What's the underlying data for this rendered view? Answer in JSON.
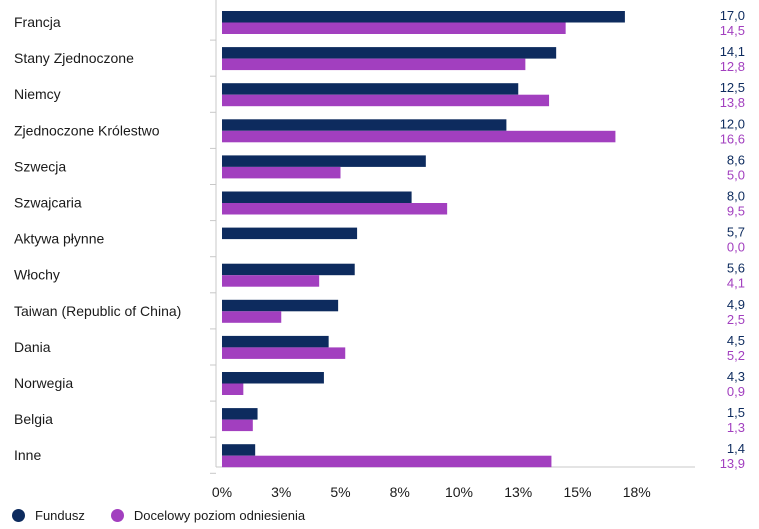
{
  "chart_data": {
    "type": "bar",
    "orientation": "horizontal",
    "categories": [
      "Francja",
      "Stany Zjednoczone",
      "Niemcy",
      "Zjednoczone Królestwo",
      "Szwecja",
      "Szwajcaria",
      "Aktywa płynne",
      "Włochy",
      "Taiwan (Republic of China)",
      "Dania",
      "Norwegia",
      "Belgia",
      "Inne"
    ],
    "series": [
      {
        "name": "Fundusz",
        "color": "#0d2b5e",
        "values": [
          17.0,
          14.1,
          12.5,
          12.0,
          8.6,
          8.0,
          5.7,
          5.6,
          4.9,
          4.5,
          4.3,
          1.5,
          1.4
        ],
        "value_labels": [
          "17,0",
          "14,1",
          "12,5",
          "12,0",
          "8,6",
          "8,0",
          "5,7",
          "5,6",
          "4,9",
          "4,5",
          "4,3",
          "1,5",
          "1,4"
        ]
      },
      {
        "name": "Docelowy poziom odniesienia",
        "color": "#a23fbf",
        "values": [
          14.5,
          12.8,
          13.8,
          16.6,
          5.0,
          9.5,
          0.0,
          4.1,
          2.5,
          5.2,
          0.9,
          1.3,
          13.9
        ],
        "value_labels": [
          "14,5",
          "12,8",
          "13,8",
          "16,6",
          "5,0",
          "9,5",
          "0,0",
          "4,1",
          "2,5",
          "5,2",
          "0,9",
          "1,3",
          "13,9"
        ]
      }
    ],
    "x_ticks": [
      0,
      2.5,
      5,
      7.5,
      10,
      12.5,
      15,
      17.5
    ],
    "x_tick_labels": [
      "0%",
      "3%",
      "5%",
      "8%",
      "10%",
      "13%",
      "15%",
      "18%"
    ],
    "xlim": [
      0,
      20
    ],
    "legend_position": "bottom-left",
    "grid": false
  }
}
